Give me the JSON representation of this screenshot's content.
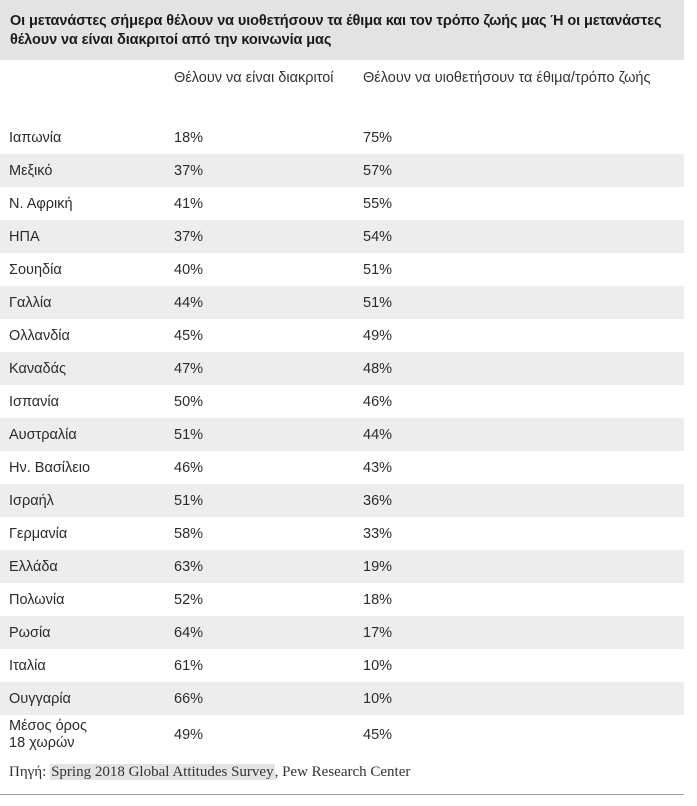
{
  "chart_data": {
    "type": "table",
    "title": "Οι μετανάστες σήμερα θέλουν να υιοθετήσουν τα έθιμα και τον τρόπο ζωής μας Ή οι μετανάστες θέλουν να είναι διακριτοί από την κοινωνία μας",
    "columns": [
      "",
      "Θέλουν να είναι διακριτοί",
      "Θέλουν να υιοθετήσουν τα έθιμα/τρόπο ζωής"
    ],
    "rows": [
      {
        "country": "Ιαπωνία",
        "distinct": "18%",
        "adopt": "75%"
      },
      {
        "country": "Μεξικό",
        "distinct": "37%",
        "adopt": "57%"
      },
      {
        "country": "Ν. Αφρική",
        "distinct": "41%",
        "adopt": "55%"
      },
      {
        "country": "ΗΠΑ",
        "distinct": "37%",
        "adopt": "54%"
      },
      {
        "country": "Σουηδία",
        "distinct": "40%",
        "adopt": "51%"
      },
      {
        "country": "Γαλλία",
        "distinct": "44%",
        "adopt": "51%"
      },
      {
        "country": "Ολλανδία",
        "distinct": "45%",
        "adopt": "49%"
      },
      {
        "country": "Καναδάς",
        "distinct": "47%",
        "adopt": "48%"
      },
      {
        "country": "Ισπανία",
        "distinct": "50%",
        "adopt": "46%"
      },
      {
        "country": "Αυστραλία",
        "distinct": "51%",
        "adopt": "44%"
      },
      {
        "country": "Ην. Βασίλειο",
        "distinct": "46%",
        "adopt": "43%"
      },
      {
        "country": "Ισραήλ",
        "distinct": "51%",
        "adopt": "36%"
      },
      {
        "country": "Γερμανία",
        "distinct": "58%",
        "adopt": "33%"
      },
      {
        "country": "Ελλάδα",
        "distinct": "63%",
        "adopt": "19%"
      },
      {
        "country": "Πολωνία",
        "distinct": "52%",
        "adopt": "18%"
      },
      {
        "country": "Ρωσία",
        "distinct": "64%",
        "adopt": "17%"
      },
      {
        "country": "Ιταλία",
        "distinct": "61%",
        "adopt": "10%"
      },
      {
        "country": "Ουγγαρία",
        "distinct": "66%",
        "adopt": "10%"
      },
      {
        "country": "Μέσος όρος 18 χωρών",
        "distinct": "49%",
        "adopt": "45%"
      }
    ],
    "source_prefix": "Πηγή: ",
    "source_link": "Spring 2018 Global Attitudes Survey",
    "source_suffix": ", Pew Research Center",
    "colors": {
      "title_band": "#e3e3e3",
      "alt_row": "#ededed",
      "link_highlight": "#e4e4e4"
    }
  }
}
